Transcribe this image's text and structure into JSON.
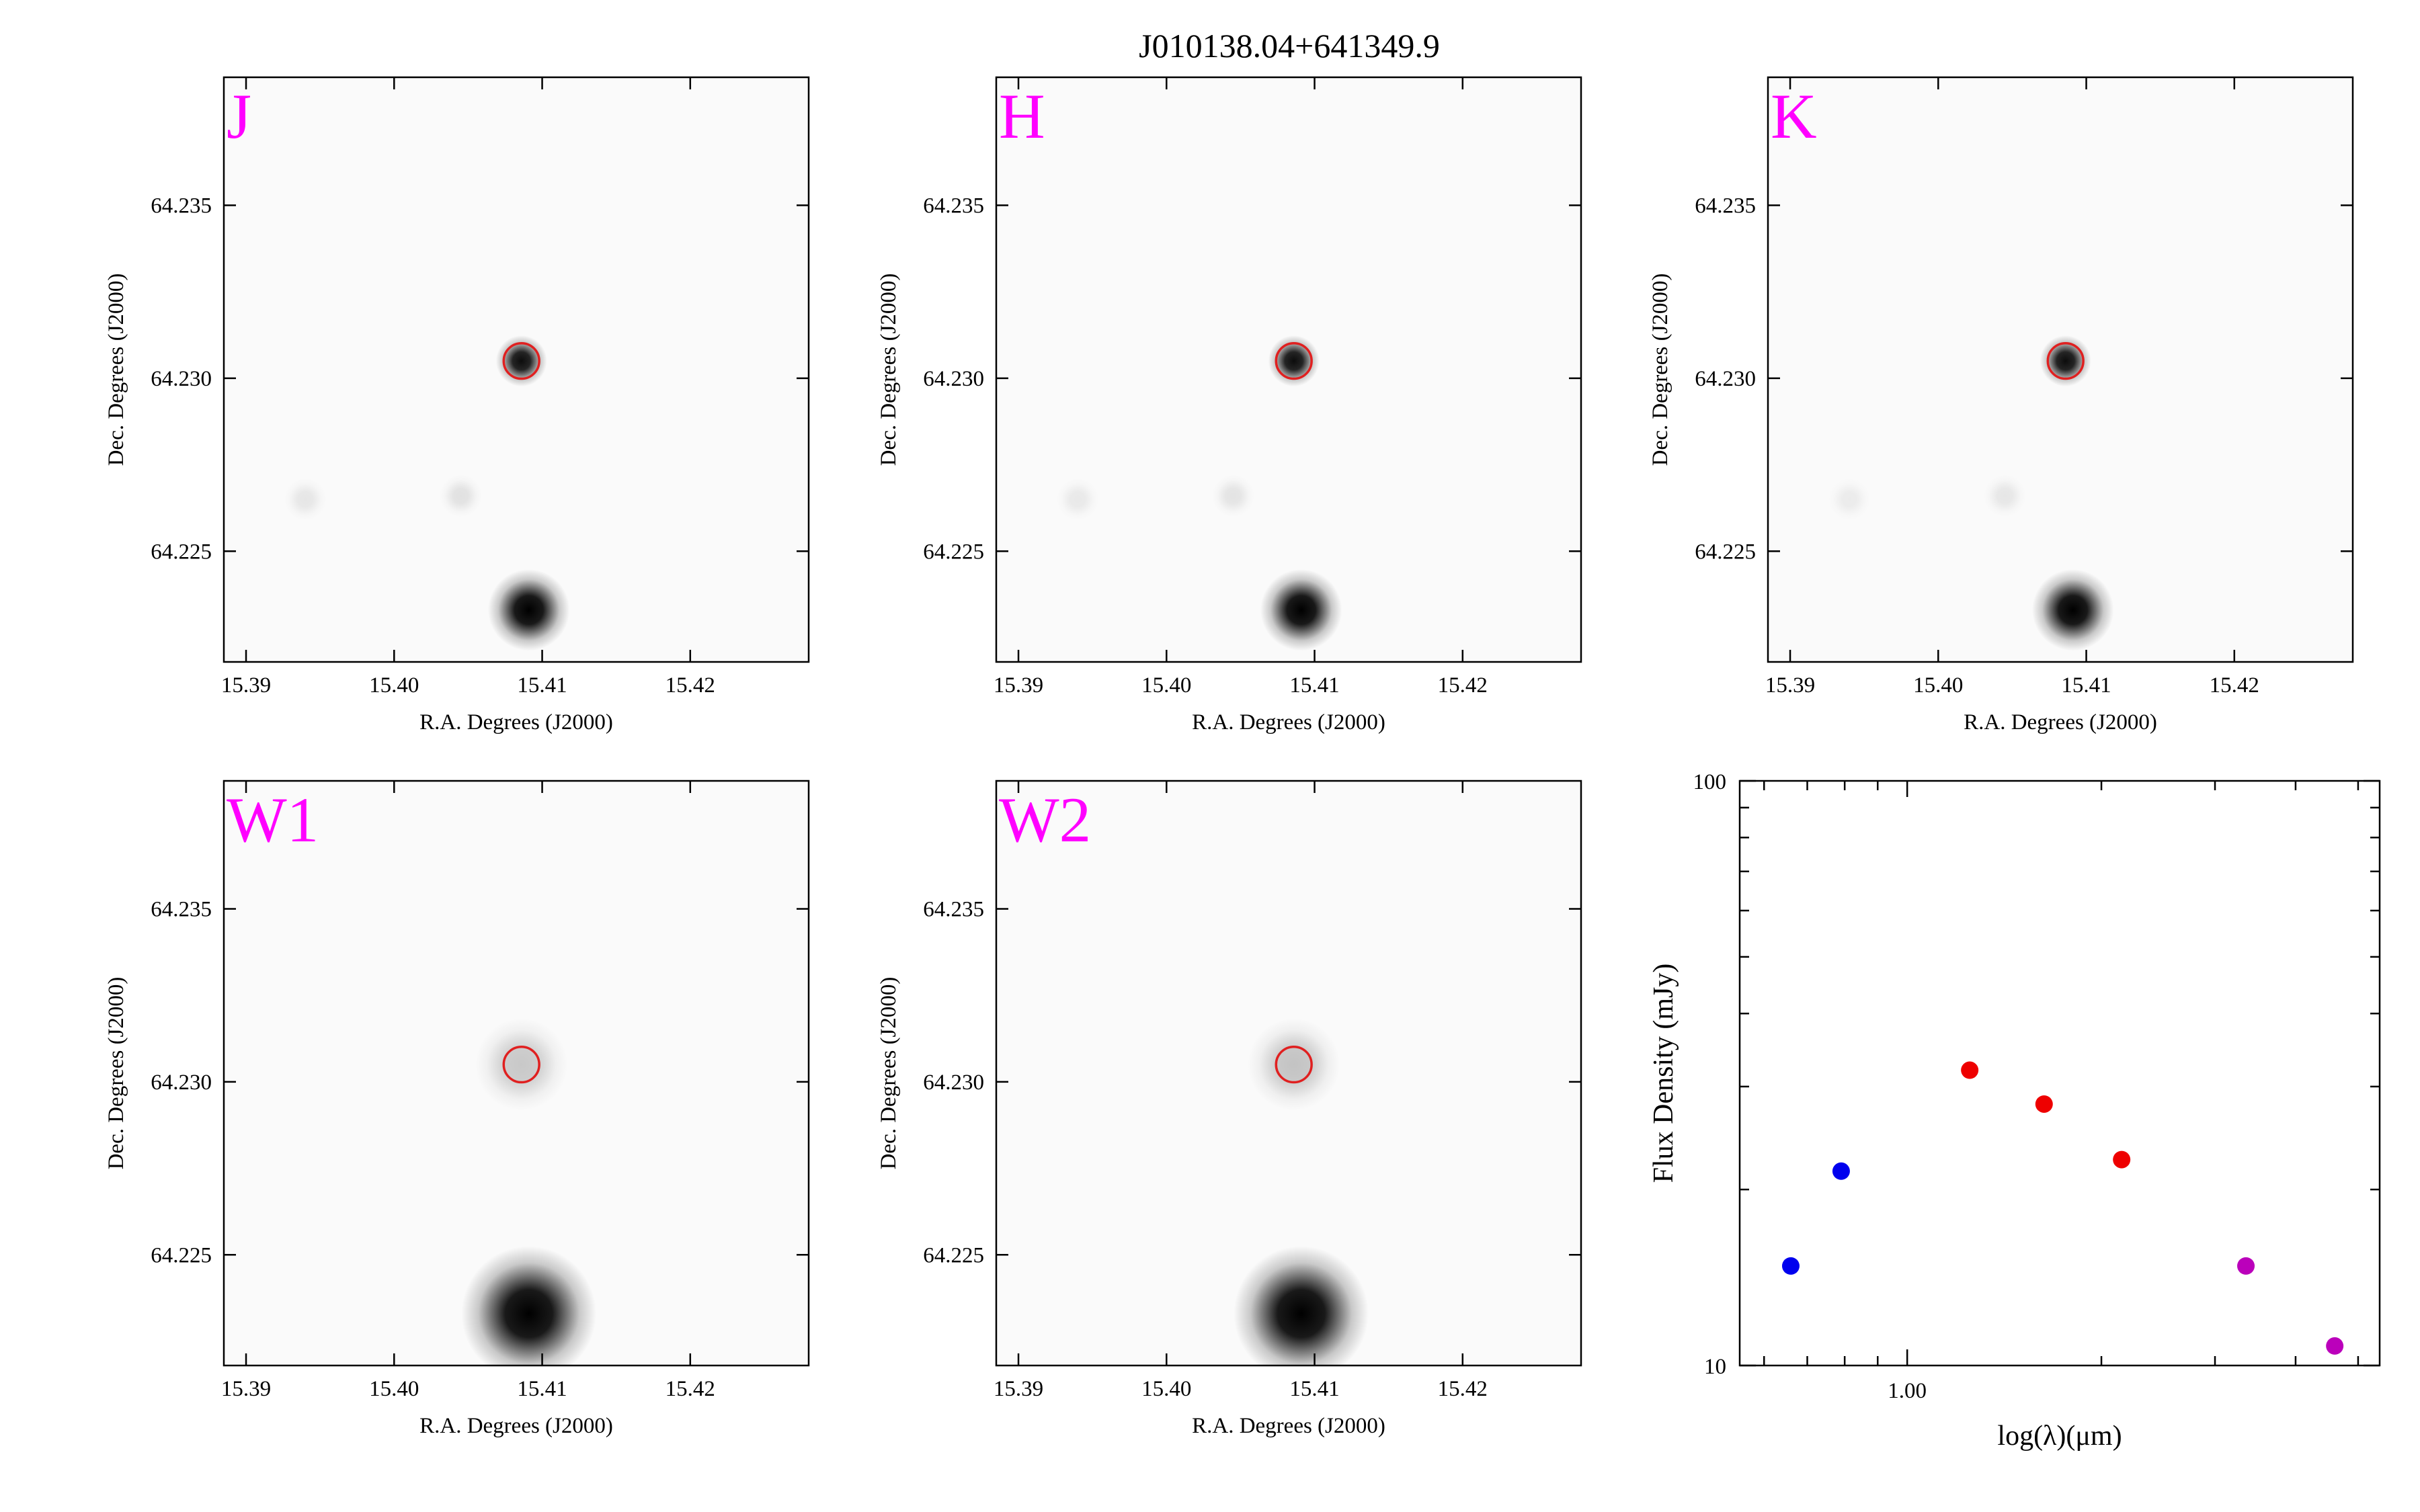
{
  "title": "J010138.04+641349.9",
  "colors": {
    "panel_label": "#ff00ff",
    "aperture": "#e02020",
    "star_dark": "#000000",
    "background": "#fafafa"
  },
  "chart_data": [
    {
      "type": "heatmap",
      "band": "J",
      "xlabel": "R.A. Degrees (J2000)",
      "ylabel": "Dec. Degrees (J2000)",
      "xlim": [
        15.3885,
        15.428
      ],
      "ylim": [
        64.2218,
        64.2387
      ],
      "xticks": [
        "15.39",
        "15.40",
        "15.41",
        "15.42"
      ],
      "yticks": [
        "64.225",
        "64.230",
        "64.235"
      ],
      "target": {
        "ra": 15.4086,
        "dec": 64.2305,
        "peak": 0.95,
        "sigma_deg": 0.00072
      },
      "sources": [
        {
          "ra": 15.4091,
          "dec": 64.2233,
          "peak": 1.0,
          "sigma_deg": 0.00115
        },
        {
          "ra": 15.394,
          "dec": 64.2265,
          "peak": 0.08,
          "sigma_deg": 0.0006
        },
        {
          "ra": 15.4045,
          "dec": 64.2266,
          "peak": 0.1,
          "sigma_deg": 0.0006
        }
      ]
    },
    {
      "type": "heatmap",
      "band": "H",
      "xlabel": "R.A. Degrees (J2000)",
      "ylabel": "Dec. Degrees (J2000)",
      "xlim": [
        15.3885,
        15.428
      ],
      "ylim": [
        64.2218,
        64.2387
      ],
      "xticks": [
        "15.39",
        "15.40",
        "15.41",
        "15.42"
      ],
      "yticks": [
        "64.225",
        "64.230",
        "64.235"
      ],
      "target": {
        "ra": 15.4086,
        "dec": 64.2305,
        "peak": 0.95,
        "sigma_deg": 0.00072
      },
      "sources": [
        {
          "ra": 15.4091,
          "dec": 64.2233,
          "peak": 1.0,
          "sigma_deg": 0.00115
        },
        {
          "ra": 15.394,
          "dec": 64.2265,
          "peak": 0.07,
          "sigma_deg": 0.0006
        },
        {
          "ra": 15.4045,
          "dec": 64.2266,
          "peak": 0.09,
          "sigma_deg": 0.0006
        }
      ]
    },
    {
      "type": "heatmap",
      "band": "K",
      "xlabel": "R.A. Degrees (J2000)",
      "ylabel": "Dec. Degrees (J2000)",
      "xlim": [
        15.3885,
        15.428
      ],
      "ylim": [
        64.2218,
        64.2387
      ],
      "xticks": [
        "15.39",
        "15.40",
        "15.41",
        "15.42"
      ],
      "yticks": [
        "64.225",
        "64.230",
        "64.235"
      ],
      "target": {
        "ra": 15.4086,
        "dec": 64.2305,
        "peak": 0.95,
        "sigma_deg": 0.00072
      },
      "sources": [
        {
          "ra": 15.4091,
          "dec": 64.2233,
          "peak": 1.0,
          "sigma_deg": 0.00115
        },
        {
          "ra": 15.394,
          "dec": 64.2265,
          "peak": 0.06,
          "sigma_deg": 0.0006
        },
        {
          "ra": 15.4045,
          "dec": 64.2266,
          "peak": 0.08,
          "sigma_deg": 0.0006
        }
      ]
    },
    {
      "type": "heatmap",
      "band": "W1",
      "xlabel": "R.A. Degrees (J2000)",
      "ylabel": "Dec. Degrees (J2000)",
      "xlim": [
        15.3885,
        15.428
      ],
      "ylim": [
        64.2218,
        64.2387
      ],
      "xticks": [
        "15.39",
        "15.40",
        "15.41",
        "15.42"
      ],
      "yticks": [
        "64.225",
        "64.230",
        "64.235"
      ],
      "target": {
        "ra": 15.4086,
        "dec": 64.2305,
        "peak": 0.2,
        "sigma_deg": 0.0013
      },
      "sources": [
        {
          "ra": 15.4091,
          "dec": 64.2233,
          "peak": 1.0,
          "sigma_deg": 0.0019
        }
      ]
    },
    {
      "type": "heatmap",
      "band": "W2",
      "xlabel": "R.A. Degrees (J2000)",
      "ylabel": "Dec. Degrees (J2000)",
      "xlim": [
        15.3885,
        15.428
      ],
      "ylim": [
        64.2218,
        64.2387
      ],
      "xticks": [
        "15.39",
        "15.40",
        "15.41",
        "15.42"
      ],
      "yticks": [
        "64.225",
        "64.230",
        "64.235"
      ],
      "target": {
        "ra": 15.4086,
        "dec": 64.2305,
        "peak": 0.22,
        "sigma_deg": 0.0013
      },
      "sources": [
        {
          "ra": 15.4091,
          "dec": 64.2233,
          "peak": 1.0,
          "sigma_deg": 0.0019
        }
      ]
    },
    {
      "type": "scatter",
      "xlabel": "log(λ)(μm)",
      "ylabel": "Flux Density (mJy)",
      "xscale": "log",
      "yscale": "log",
      "xlim": [
        0.55,
        5.4
      ],
      "ylim": [
        10,
        100
      ],
      "xticks": [
        "1.00"
      ],
      "yticks": [
        "10",
        "100"
      ],
      "series": [
        {
          "color": "#0000ee",
          "points": [
            {
              "x": 0.66,
              "y": 14.8
            },
            {
              "x": 0.79,
              "y": 21.5
            }
          ]
        },
        {
          "color": "#ee0000",
          "points": [
            {
              "x": 1.25,
              "y": 32.0
            },
            {
              "x": 1.63,
              "y": 28.0
            },
            {
              "x": 2.15,
              "y": 22.5
            }
          ]
        },
        {
          "color": "#bb00bb",
          "points": [
            {
              "x": 3.35,
              "y": 14.8
            },
            {
              "x": 4.6,
              "y": 10.8
            }
          ]
        }
      ]
    }
  ]
}
